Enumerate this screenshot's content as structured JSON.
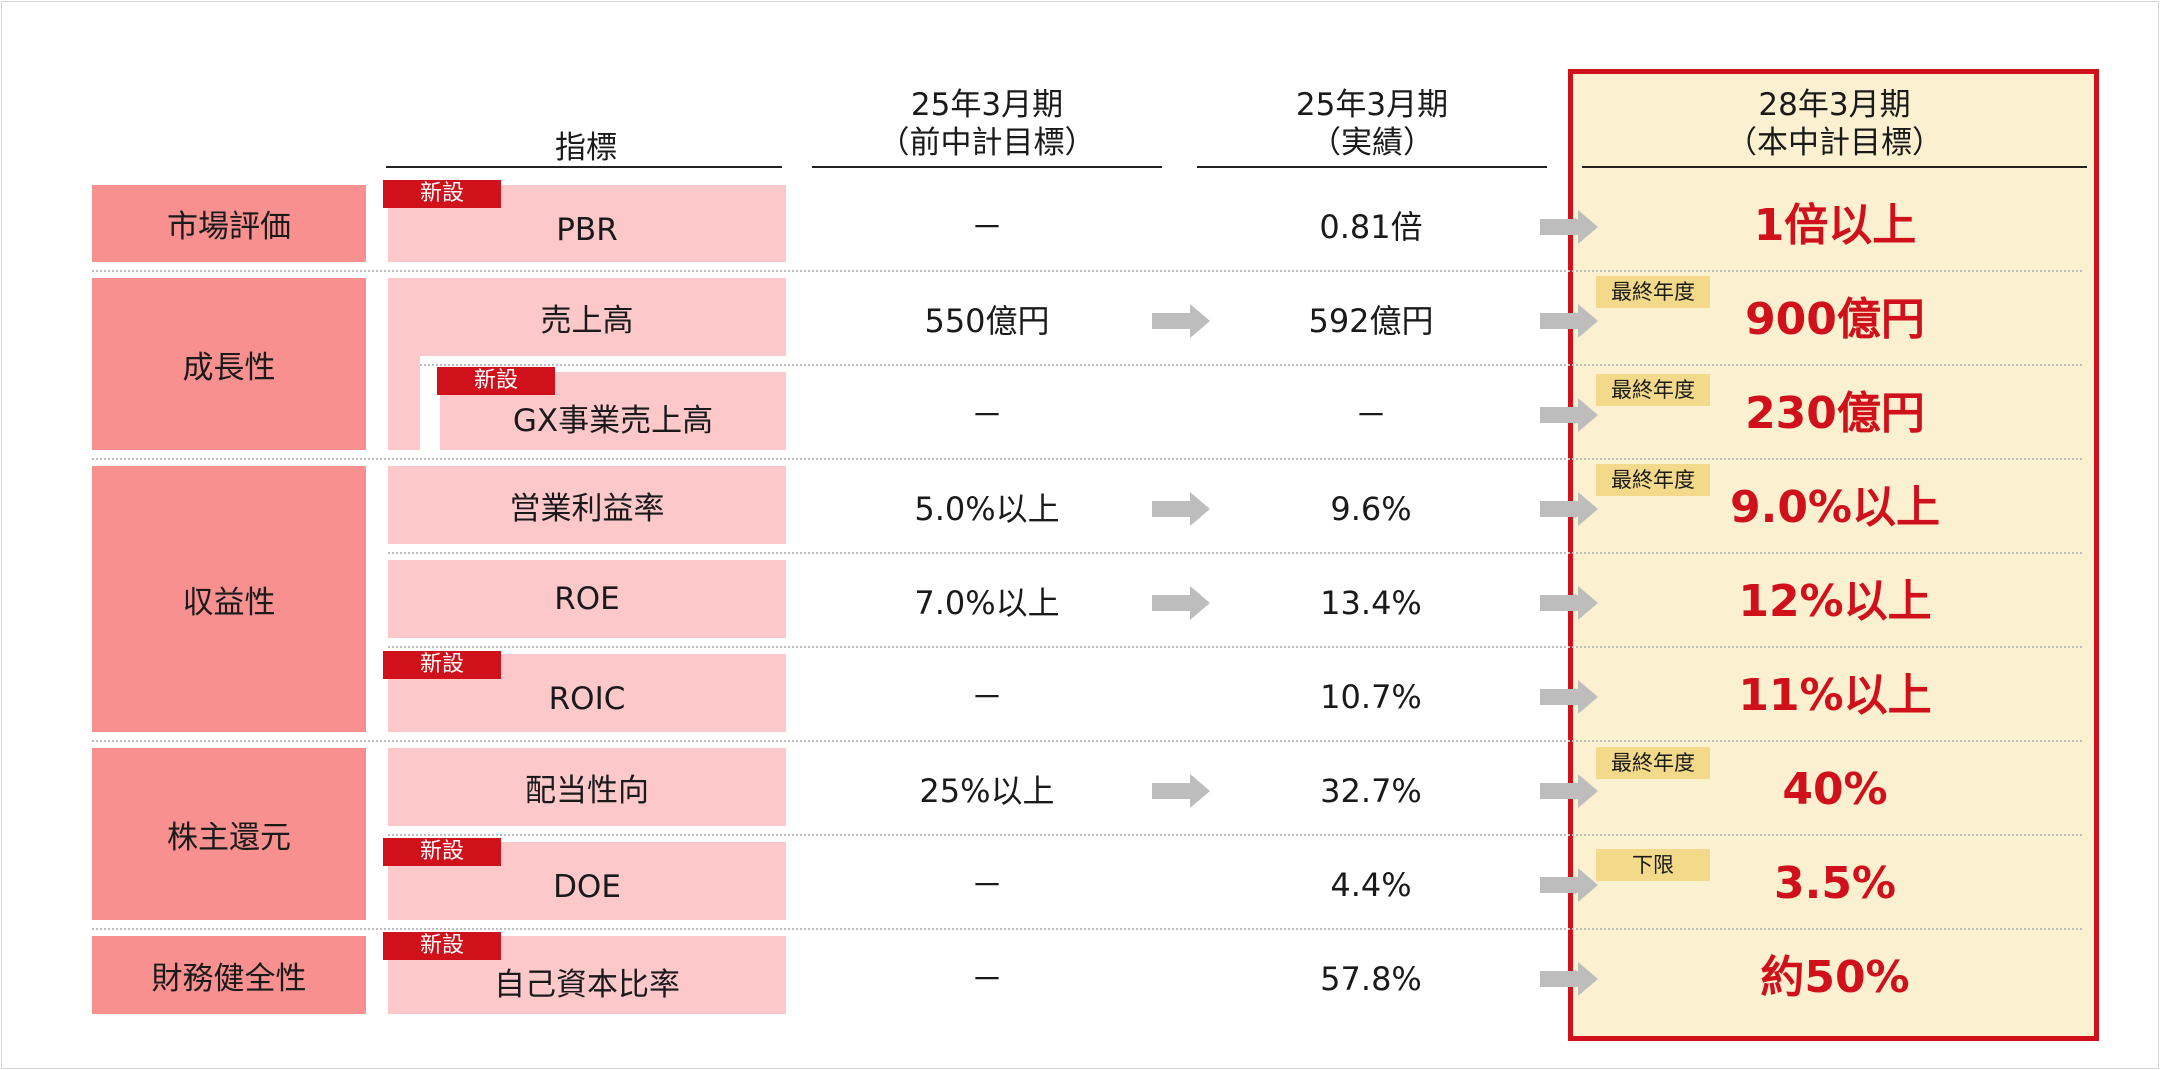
{
  "headers": {
    "indicator": "指標",
    "prev_target_line1": "25年3月期",
    "prev_target_line2": "（前中計目標）",
    "actual_line1": "25年3月期",
    "actual_line2": "（実績）",
    "new_target_line1": "28年3月期",
    "new_target_line2": "（本中計目標）"
  },
  "badge_new_label": "新設",
  "categories": [
    {
      "label": "市場評価"
    },
    {
      "label": "成長性"
    },
    {
      "label": "収益性"
    },
    {
      "label": "株主還元"
    },
    {
      "label": "財務健全性"
    }
  ],
  "rows": [
    {
      "indicator": "PBR",
      "is_new": true,
      "prev_target": "－",
      "actual": "0.81倍",
      "new_target": "1倍以上",
      "note": ""
    },
    {
      "indicator": "売上高",
      "is_new": false,
      "prev_target": "550億円",
      "actual": "592億円",
      "new_target": "900億円",
      "note": "最終年度"
    },
    {
      "indicator": "GX事業売上高",
      "is_new": true,
      "prev_target": "－",
      "actual": "－",
      "new_target": "230億円",
      "note": "最終年度"
    },
    {
      "indicator": "営業利益率",
      "is_new": false,
      "prev_target": "5.0%以上",
      "actual": "9.6%",
      "new_target": "9.0%以上",
      "note": "最終年度"
    },
    {
      "indicator": "ROE",
      "is_new": false,
      "prev_target": "7.0%以上",
      "actual": "13.4%",
      "new_target": "12%以上",
      "note": ""
    },
    {
      "indicator": "ROIC",
      "is_new": true,
      "prev_target": "－",
      "actual": "10.7%",
      "new_target": "11%以上",
      "note": ""
    },
    {
      "indicator": "配当性向",
      "is_new": false,
      "prev_target": "25%以上",
      "actual": "32.7%",
      "new_target": "40%",
      "note": "最終年度"
    },
    {
      "indicator": "DOE",
      "is_new": true,
      "prev_target": "－",
      "actual": "4.4%",
      "new_target": "3.5%",
      "note": "下限"
    },
    {
      "indicator": "自己資本比率",
      "is_new": true,
      "prev_target": "－",
      "actual": "57.8%",
      "new_target": "約50%",
      "note": ""
    }
  ],
  "colors": {
    "accent_red": "#d0101a",
    "category_bg": "#f99090",
    "indicator_bg": "#fdc8ca",
    "target_panel_bg": "#fbf1d0",
    "note_bg": "#f3d98a",
    "arrow_gray": "#bdbdbd"
  }
}
